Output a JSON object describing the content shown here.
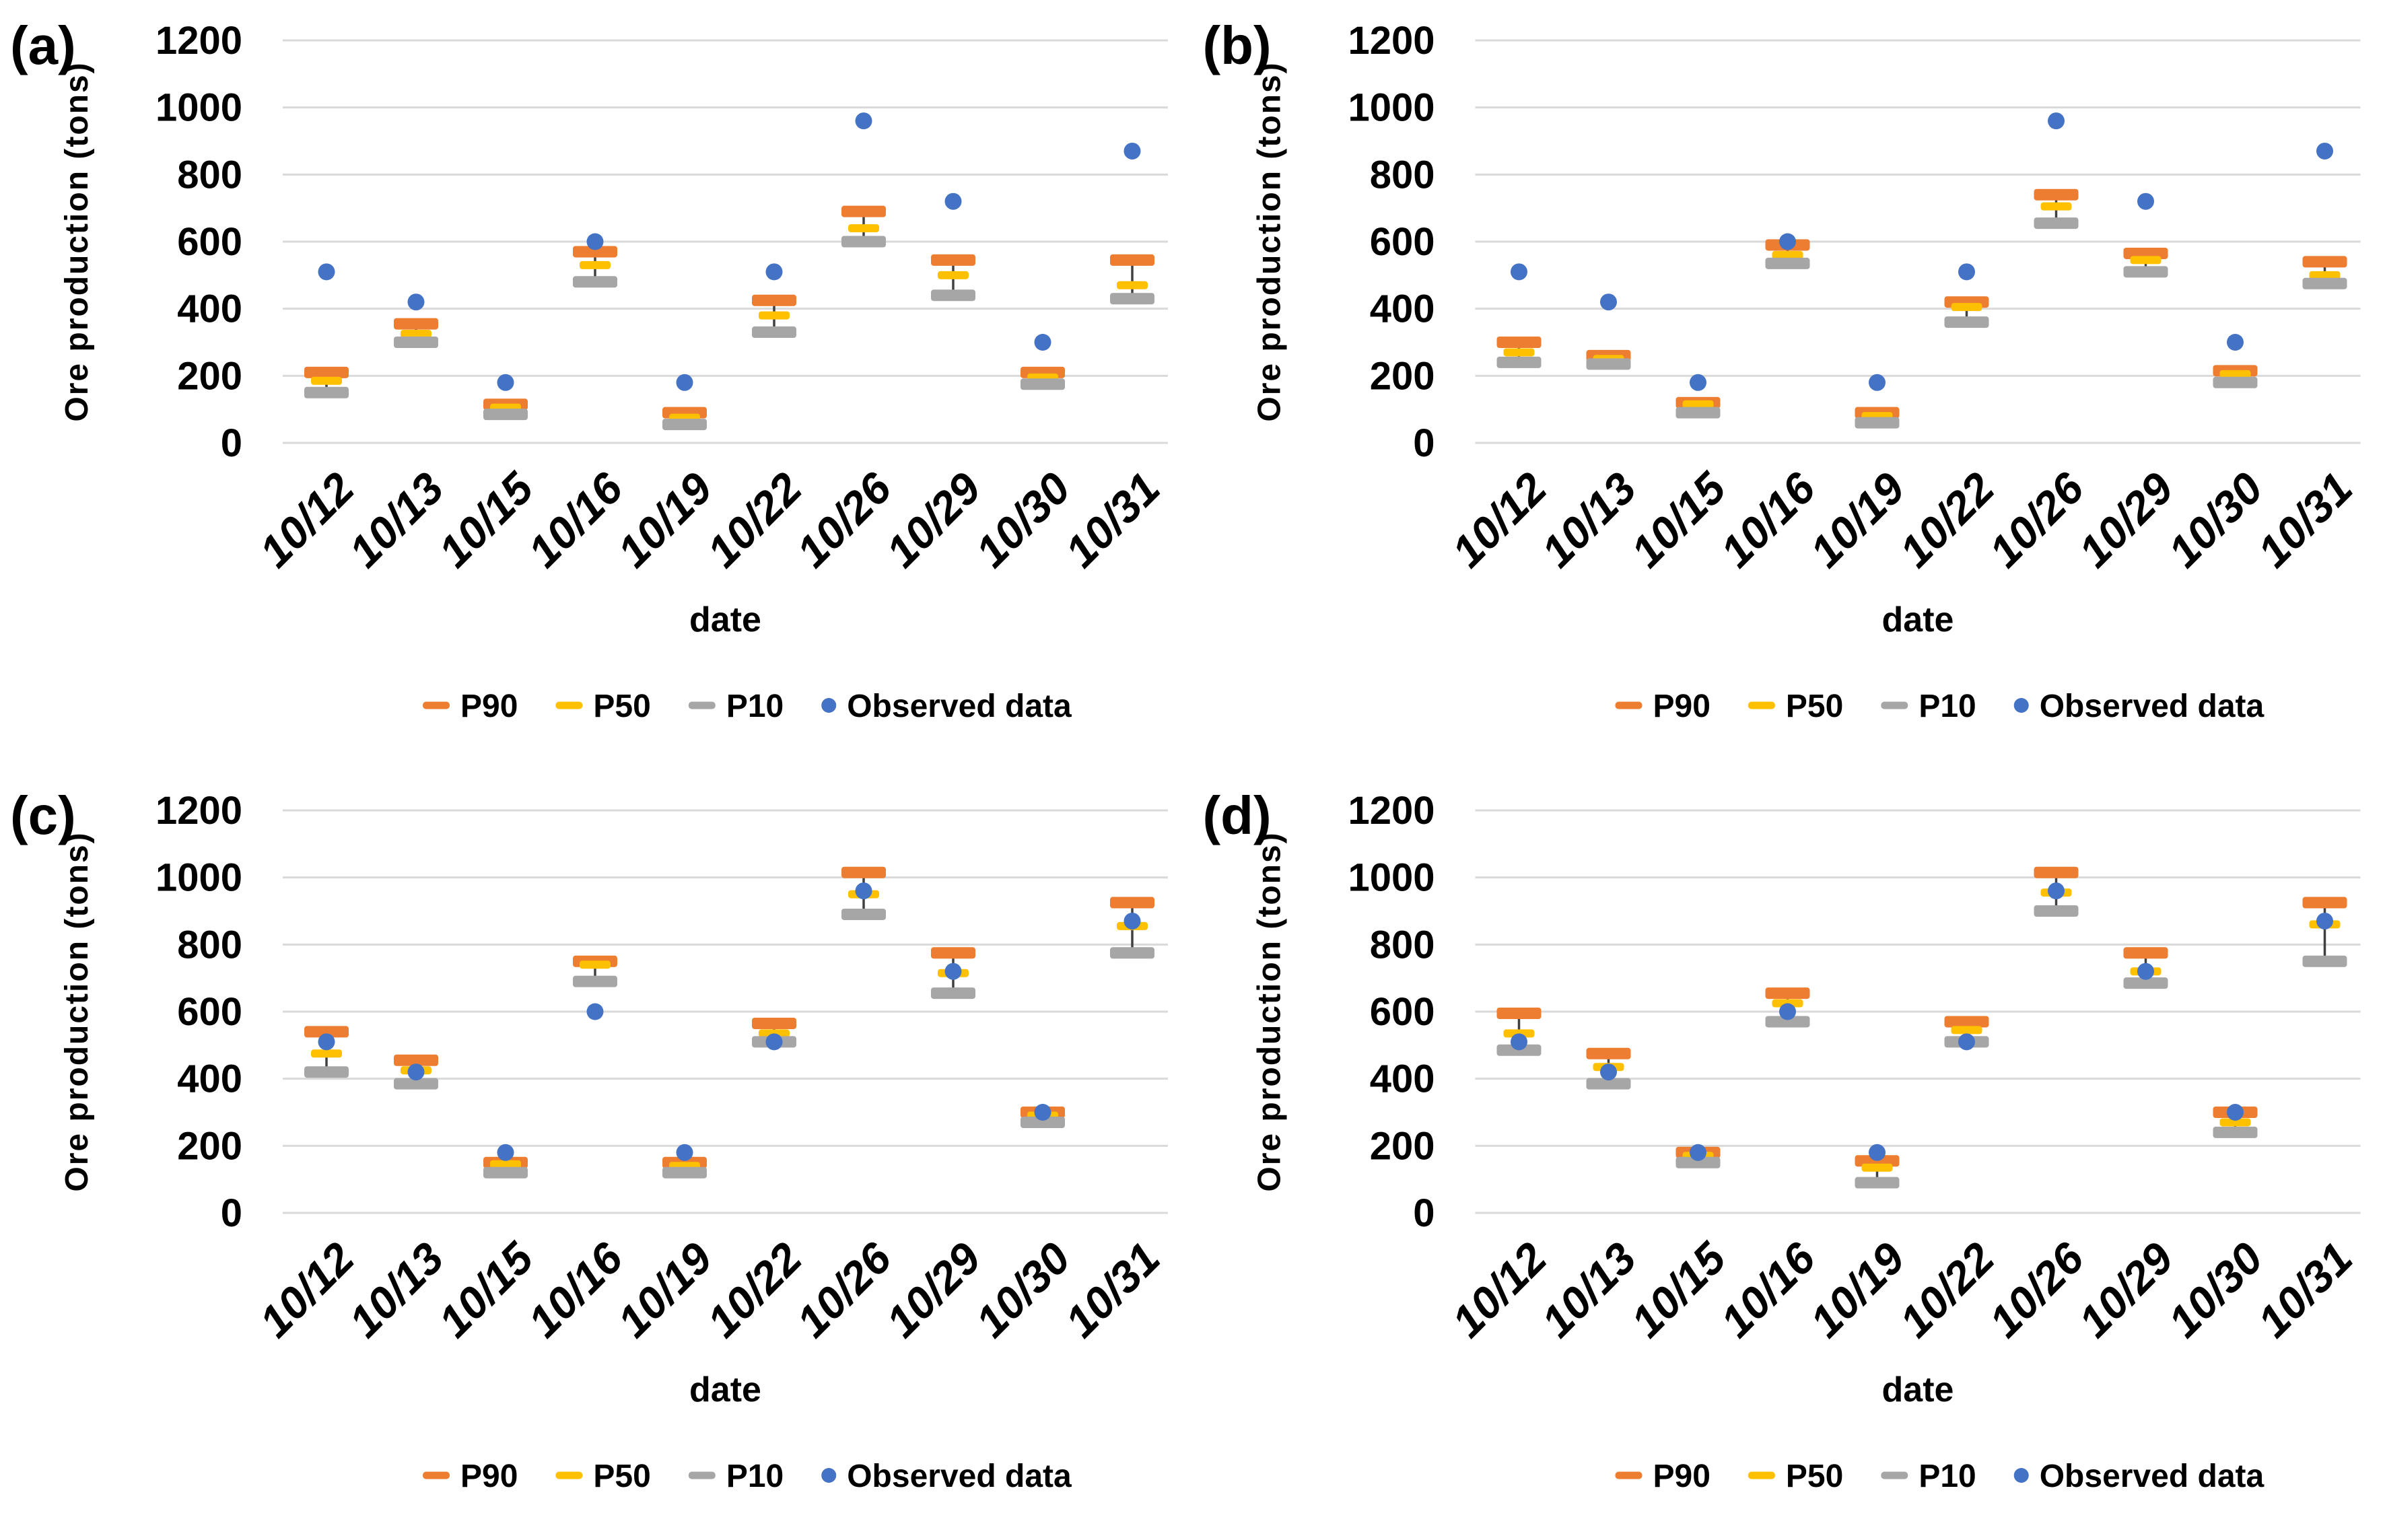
{
  "page": {
    "background": "#ffffff"
  },
  "colors": {
    "p90": "#ED7D31",
    "p50": "#FFC000",
    "p10": "#A6A6A6",
    "observed": "#4472C4",
    "gridline": "#D9D9D9",
    "error_line": "#404040",
    "text": "#000000"
  },
  "legend": {
    "items": [
      {
        "key": "p90",
        "label": "P90",
        "icon": "dash-icon"
      },
      {
        "key": "p50",
        "label": "P50",
        "icon": "dash-icon"
      },
      {
        "key": "p10",
        "label": "P10",
        "icon": "dash-icon"
      },
      {
        "key": "observed",
        "label": "Observed data",
        "icon": "dot-icon"
      }
    ]
  },
  "axes": {
    "ylabel": "Ore production (tons)",
    "xlabel": "date",
    "ylim": [
      0,
      1200
    ],
    "yticks": [
      0,
      200,
      400,
      600,
      800,
      1000,
      1200
    ]
  },
  "chart_data": [
    {
      "panel_id": "a",
      "panel_label": "(a)",
      "type": "scatter",
      "title": "",
      "xlabel": "date",
      "ylabel": "Ore production (tons)",
      "ylim": [
        0,
        1200
      ],
      "grid": true,
      "legend_position": "bottom",
      "categories": [
        "10/12",
        "10/13",
        "10/15",
        "10/16",
        "10/19",
        "10/22",
        "10/26",
        "10/29",
        "10/30",
        "10/31"
      ],
      "series": [
        {
          "name": "P90",
          "values": [
            210,
            355,
            115,
            570,
            90,
            425,
            690,
            545,
            210,
            545
          ]
        },
        {
          "name": "P50",
          "values": [
            185,
            325,
            105,
            530,
            75,
            380,
            640,
            500,
            195,
            470
          ]
        },
        {
          "name": "P10",
          "values": [
            150,
            300,
            85,
            480,
            55,
            330,
            600,
            440,
            175,
            430
          ]
        },
        {
          "name": "Observed data",
          "values": [
            510,
            420,
            180,
            600,
            180,
            510,
            960,
            720,
            300,
            870
          ]
        }
      ]
    },
    {
      "panel_id": "b",
      "panel_label": "(b)",
      "type": "scatter",
      "title": "",
      "xlabel": "date",
      "ylabel": "Ore production (tons)",
      "ylim": [
        0,
        1200
      ],
      "grid": true,
      "legend_position": "bottom",
      "categories": [
        "10/12",
        "10/13",
        "10/15",
        "10/16",
        "10/19",
        "10/22",
        "10/26",
        "10/29",
        "10/30",
        "10/31"
      ],
      "series": [
        {
          "name": "P90",
          "values": [
            300,
            260,
            120,
            590,
            90,
            420,
            740,
            565,
            215,
            540
          ]
        },
        {
          "name": "P50",
          "values": [
            270,
            250,
            115,
            560,
            80,
            405,
            705,
            545,
            205,
            500
          ]
        },
        {
          "name": "P10",
          "values": [
            240,
            235,
            90,
            535,
            60,
            360,
            655,
            510,
            180,
            475
          ]
        },
        {
          "name": "Observed data",
          "values": [
            510,
            420,
            180,
            600,
            180,
            510,
            960,
            720,
            300,
            870
          ]
        }
      ]
    },
    {
      "panel_id": "c",
      "panel_label": "(c)",
      "type": "scatter",
      "title": "",
      "xlabel": "date",
      "ylabel": "Ore production (tons)",
      "ylim": [
        0,
        1200
      ],
      "grid": true,
      "legend_position": "bottom",
      "categories": [
        "10/12",
        "10/13",
        "10/15",
        "10/16",
        "10/19",
        "10/22",
        "10/26",
        "10/29",
        "10/30",
        "10/31"
      ],
      "series": [
        {
          "name": "P90",
          "values": [
            540,
            455,
            150,
            750,
            150,
            565,
            1015,
            775,
            300,
            925
          ]
        },
        {
          "name": "P50",
          "values": [
            475,
            425,
            145,
            740,
            140,
            535,
            950,
            715,
            290,
            855
          ]
        },
        {
          "name": "P10",
          "values": [
            420,
            385,
            120,
            690,
            120,
            510,
            890,
            655,
            270,
            775
          ]
        },
        {
          "name": "Observed data",
          "values": [
            510,
            420,
            180,
            600,
            180,
            510,
            960,
            720,
            300,
            870
          ]
        }
      ]
    },
    {
      "panel_id": "d",
      "panel_label": "(d)",
      "type": "scatter",
      "title": "",
      "xlabel": "date",
      "ylabel": "Ore production (tons)",
      "ylim": [
        0,
        1200
      ],
      "grid": true,
      "legend_position": "bottom",
      "categories": [
        "10/12",
        "10/13",
        "10/15",
        "10/16",
        "10/19",
        "10/22",
        "10/26",
        "10/29",
        "10/30",
        "10/31"
      ],
      "series": [
        {
          "name": "P90",
          "values": [
            595,
            475,
            180,
            655,
            155,
            570,
            1015,
            775,
            300,
            925
          ]
        },
        {
          "name": "P50",
          "values": [
            535,
            435,
            170,
            625,
            135,
            545,
            955,
            720,
            270,
            860
          ]
        },
        {
          "name": "P10",
          "values": [
            485,
            385,
            150,
            570,
            90,
            510,
            900,
            685,
            240,
            750
          ]
        },
        {
          "name": "Observed data",
          "values": [
            510,
            420,
            180,
            600,
            180,
            510,
            960,
            720,
            300,
            870
          ]
        }
      ]
    }
  ]
}
